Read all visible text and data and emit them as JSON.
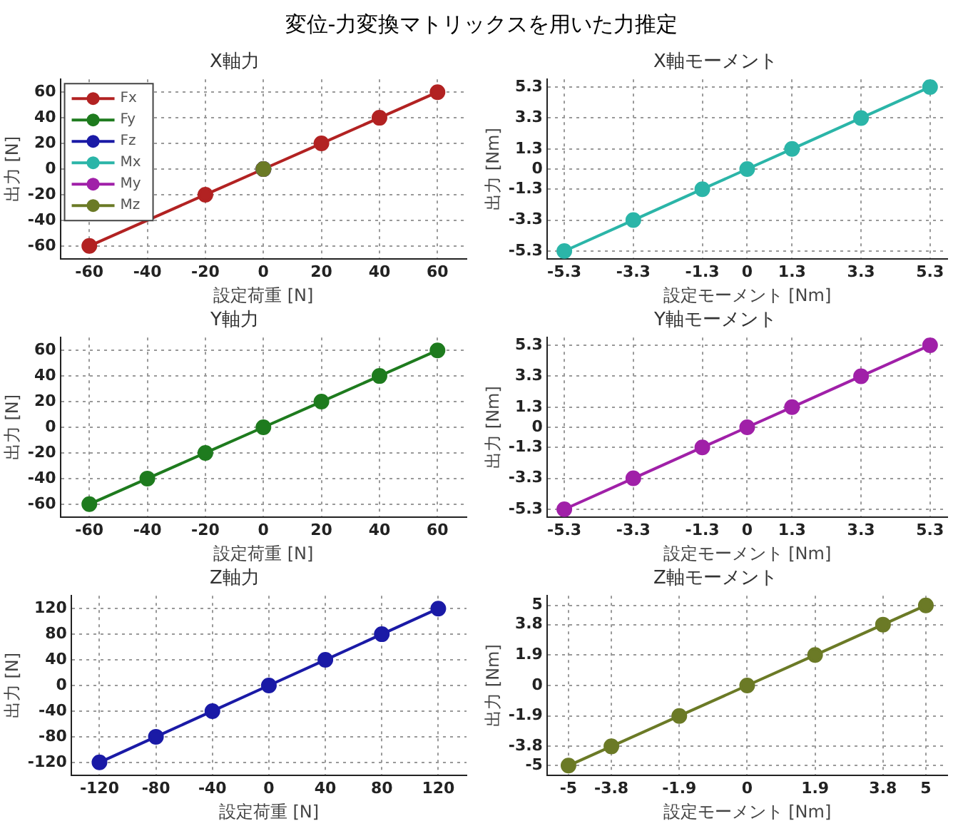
{
  "chart_data": [
    {
      "type": "line",
      "annotations": [
        "変位-力変換マトリックスを用いた力推定"
      ],
      "title": "X軸力",
      "xlabel": "設定荷重 [N]",
      "ylabel": "出力 [N]",
      "xlim": [
        -70,
        70
      ],
      "ylim": [
        -70,
        70
      ],
      "xticks": [
        -60,
        -40,
        -20,
        0,
        20,
        40,
        60
      ],
      "yticks": [
        -60,
        -40,
        -20,
        0,
        20,
        40,
        60
      ],
      "grid": true,
      "marker": "circle",
      "legend": "top left",
      "series": [
        {
          "name": "Fx",
          "color": "#b22222",
          "x": [
            -60,
            -20,
            0,
            20,
            40,
            60
          ],
          "values": [
            -60,
            -20,
            0,
            20,
            40,
            60
          ]
        },
        {
          "name": "Fy",
          "color": "#1e7b1e",
          "x": [
            0
          ],
          "values": [
            0
          ]
        },
        {
          "name": "Fz",
          "color": "#1a1aa6",
          "x": [
            0
          ],
          "values": [
            0
          ]
        },
        {
          "name": "Mx",
          "color": "#2bb5a8",
          "x": [
            0
          ],
          "values": [
            0
          ]
        },
        {
          "name": "My",
          "color": "#a020a8",
          "x": [
            0
          ],
          "values": [
            0
          ]
        },
        {
          "name": "Mz",
          "color": "#6b7a26",
          "x": [
            0
          ],
          "values": [
            0
          ]
        }
      ]
    },
    {
      "type": "line",
      "title": "X軸モーメント",
      "xlabel": "設定モーメント [Nm]",
      "ylabel": "出力 [Nm]",
      "xlim": [
        -5.8,
        5.8
      ],
      "ylim": [
        -5.8,
        5.8
      ],
      "xticks": [
        -5.3,
        -3.3,
        -1.3,
        0,
        1.3,
        3.3,
        5.3
      ],
      "yticks": [
        -5.3,
        -3.3,
        -1.3,
        0,
        1.3,
        3.3,
        5.3
      ],
      "grid": true,
      "marker": "circle",
      "series": [
        {
          "color": "#2bb5a8",
          "x": [
            -5.3,
            -3.3,
            -1.3,
            0,
            1.3,
            3.3,
            5.3
          ],
          "values": [
            -5.3,
            -3.3,
            -1.3,
            0,
            1.3,
            3.3,
            5.3
          ]
        }
      ]
    },
    {
      "type": "line",
      "title": "Y軸力",
      "xlabel": "設定荷重 [N]",
      "ylabel": "出力 [N]",
      "xlim": [
        -70,
        70
      ],
      "ylim": [
        -70,
        70
      ],
      "xticks": [
        -60,
        -40,
        -20,
        0,
        20,
        40,
        60
      ],
      "yticks": [
        -60,
        -40,
        -20,
        0,
        20,
        40,
        60
      ],
      "grid": true,
      "marker": "circle",
      "series": [
        {
          "color": "#1e7b1e",
          "x": [
            -60,
            -40,
            -20,
            0,
            20,
            40,
            60
          ],
          "values": [
            -60,
            -40,
            -20,
            0,
            20,
            40,
            60
          ]
        }
      ]
    },
    {
      "type": "line",
      "title": "Y軸モーメント",
      "xlabel": "設定モーメント [Nm]",
      "ylabel": "出力 [Nm]",
      "xlim": [
        -5.8,
        5.8
      ],
      "ylim": [
        -5.8,
        5.8
      ],
      "xticks": [
        -5.3,
        -3.3,
        -1.3,
        0,
        1.3,
        3.3,
        5.3
      ],
      "yticks": [
        -5.3,
        -3.3,
        -1.3,
        0,
        1.3,
        3.3,
        5.3
      ],
      "grid": true,
      "marker": "circle",
      "series": [
        {
          "color": "#a020a8",
          "x": [
            -5.3,
            -3.3,
            -1.3,
            0,
            1.3,
            3.3,
            5.3
          ],
          "values": [
            -5.3,
            -3.3,
            -1.3,
            0,
            1.3,
            3.3,
            5.3
          ]
        }
      ]
    },
    {
      "type": "line",
      "title": "Z軸力",
      "xlabel": "設定荷重 [N]",
      "ylabel": "出力 [N]",
      "xlim": [
        -140,
        140
      ],
      "ylim": [
        -140,
        140
      ],
      "xticks": [
        -120,
        -80,
        -40,
        0,
        40,
        80,
        120
      ],
      "yticks": [
        -120,
        -80,
        -40,
        0,
        40,
        80,
        120
      ],
      "grid": true,
      "marker": "circle",
      "series": [
        {
          "color": "#1a1aa6",
          "x": [
            -120,
            -80,
            -40,
            0,
            40,
            80,
            120
          ],
          "values": [
            -120,
            -80,
            -40,
            0,
            40,
            80,
            120
          ]
        }
      ]
    },
    {
      "type": "line",
      "title": "Z軸モーメント",
      "xlabel": "設定モーメント [Nm]",
      "ylabel": "出力 [Nm]",
      "xlim": [
        -5.6,
        5.6
      ],
      "ylim": [
        -5.6,
        5.6
      ],
      "xticks": [
        -5,
        -3.8,
        -1.9,
        0,
        1.9,
        3.8,
        5
      ],
      "yticks": [
        -5,
        -3.8,
        -1.9,
        0,
        1.9,
        3.8,
        5
      ],
      "grid": true,
      "marker": "circle",
      "series": [
        {
          "color": "#6b7a26",
          "x": [
            -5,
            -3.8,
            -1.9,
            0,
            1.9,
            3.8,
            5
          ],
          "values": [
            -5,
            -3.8,
            -1.9,
            0,
            1.9,
            3.8,
            5
          ]
        }
      ]
    }
  ]
}
